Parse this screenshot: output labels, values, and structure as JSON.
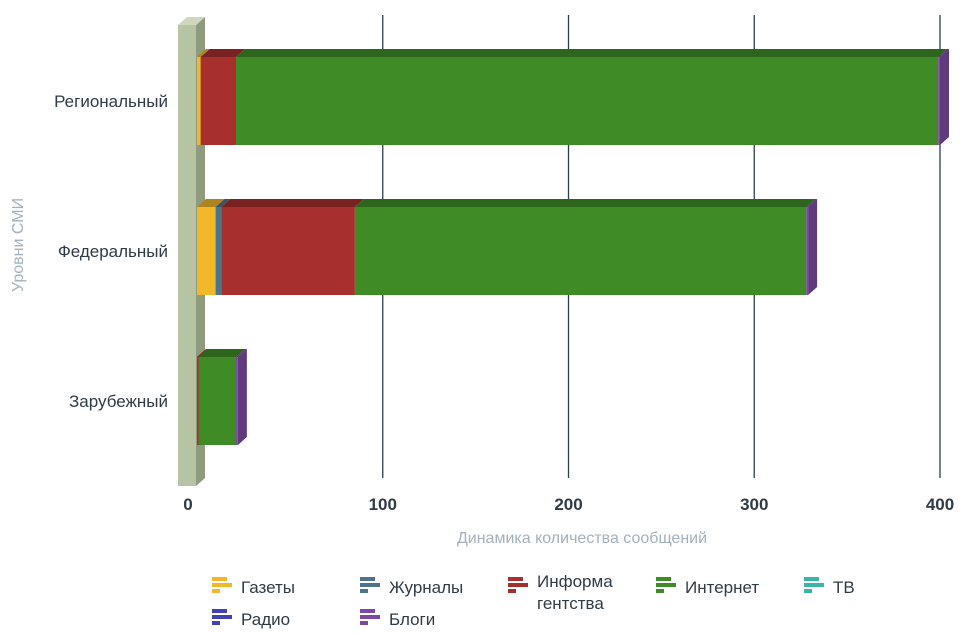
{
  "chart_data": {
    "type": "bar",
    "orientation": "horizontal",
    "stacked": true,
    "three_d": true,
    "categories": [
      "Региональный",
      "Федеральный",
      "Зарубежный"
    ],
    "xlabel": "Динамика количества сообщений",
    "ylabel": "Уровни СМИ",
    "xlim": [
      0,
      400
    ],
    "x_ticks": [
      "0",
      "100",
      "200",
      "300",
      "400"
    ],
    "grid": "vertical",
    "legend_position": "bottom",
    "series": [
      {
        "name": "Газеты",
        "color": "#f2b829",
        "values": [
          2,
          10,
          0
        ]
      },
      {
        "name": "Журналы",
        "color": "#4d7589",
        "values": [
          0,
          3,
          0
        ]
      },
      {
        "name": "Информа гентства",
        "color": "#a72f2e",
        "values": [
          19,
          72,
          1
        ]
      },
      {
        "name": "Интернет",
        "color": "#3f8c27",
        "values": [
          378,
          243,
          20
        ]
      },
      {
        "name": "ТВ",
        "color": "#38b6a6",
        "values": [
          0,
          0,
          0
        ]
      },
      {
        "name": "Радио",
        "color": "#4142b5",
        "values": [
          0,
          0,
          0
        ]
      },
      {
        "name": "Блоги",
        "color": "#7b4aa0",
        "values": [
          1,
          1,
          1
        ]
      }
    ]
  }
}
